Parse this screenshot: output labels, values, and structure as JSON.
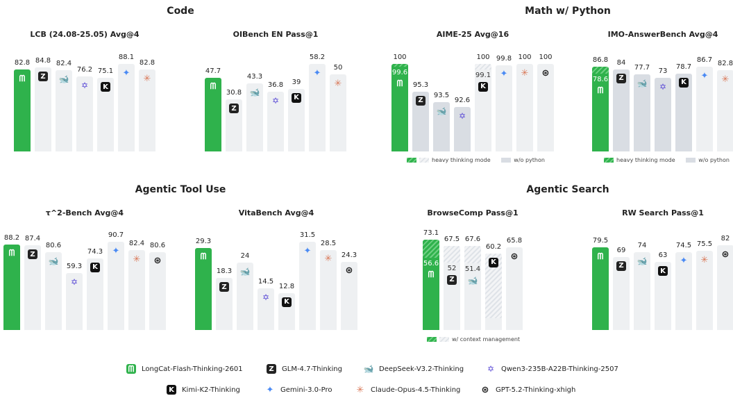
{
  "sections": {
    "code": "Code",
    "math": "Math w/ Python",
    "tool": "Agentic Tool Use",
    "search": "Agentic Search"
  },
  "models": [
    "LongCat-Flash-Thinking-2601",
    "GLM-4.7-Thinking",
    "DeepSeek-V3.2-Thinking",
    "Qwen3-235B-A22B-Thinking-2507",
    "Kimi-K2-Thinking",
    "Gemini-3.0-Pro",
    "Claude-Opus-4.5-Thinking",
    "GPT-5.2-Thinking-xhigh"
  ],
  "icons": [
    "longcat-icon",
    "glm-icon",
    "deepseek-icon",
    "qwen-icon",
    "kimi-icon",
    "gemini-icon",
    "claude-icon",
    "gpt-icon"
  ],
  "legends": {
    "heavy": "heavy thinking mode",
    "nopy": "w/o python",
    "ctx": "w/ context management"
  },
  "colors": {
    "longcat": "#2fb24c",
    "bar": "#eef0f2",
    "nopython": "#d9dde3"
  },
  "chart_data": [
    {
      "type": "bar",
      "title": "LCB (24.08-25.05) Avg@4",
      "ylim": [
        6.3,
        90.7
      ],
      "bars": [
        {
          "m": 0,
          "v": 82.8
        },
        {
          "m": 1,
          "v": 84.8
        },
        {
          "m": 2,
          "v": 82.4
        },
        {
          "m": 3,
          "v": 76.2
        },
        {
          "m": 4,
          "v": 75.1
        },
        {
          "m": 5,
          "v": 88.1
        },
        {
          "m": 6,
          "v": 82.8
        }
      ]
    },
    {
      "type": "bar",
      "title": "OIBench EN Pass@1",
      "ylim": [
        -9.5,
        60.4
      ],
      "bars": [
        {
          "m": 0,
          "v": 47.7
        },
        {
          "m": 1,
          "v": 30.8
        },
        {
          "m": 2,
          "v": 43.3
        },
        {
          "m": 3,
          "v": 36.8
        },
        {
          "m": 4,
          "v": 39
        },
        {
          "m": 5,
          "v": 58.2
        },
        {
          "m": 6,
          "v": 50
        }
      ]
    },
    {
      "type": "bar",
      "title": "AIME-25 Avg@16",
      "ylim": [
        85,
        100.5
      ],
      "bars": [
        {
          "m": 0,
          "v": 100,
          "base": 99.6
        },
        {
          "m": 1,
          "v": 95.3,
          "nopy": true
        },
        {
          "m": 2,
          "v": 93.5,
          "nopy": true
        },
        {
          "m": 3,
          "v": 92.6,
          "nopy": true
        },
        {
          "m": 4,
          "v": 100,
          "base": 99.1
        },
        {
          "m": 5,
          "v": 99.8
        },
        {
          "m": 6,
          "v": 100
        },
        {
          "m": 7,
          "v": 100
        }
      ]
    },
    {
      "type": "bar",
      "title": "IMO-AnswerBench Avg@4",
      "ylim": [
        -18,
        94
      ],
      "bars": [
        {
          "m": 0,
          "v": 86.8,
          "base": 78.6
        },
        {
          "m": 1,
          "v": 84,
          "nopy": true
        },
        {
          "m": 2,
          "v": 77.7,
          "nopy": true
        },
        {
          "m": 3,
          "v": 73,
          "nopy": true
        },
        {
          "m": 4,
          "v": 78.7,
          "nopy": true
        },
        {
          "m": 5,
          "v": 86.7
        },
        {
          "m": 6,
          "v": 82.8
        }
      ]
    },
    {
      "type": "bar",
      "title": "τ^2-Bench Avg@4",
      "ylim": [
        1.6,
        93.1
      ],
      "bars": [
        {
          "m": 0,
          "v": 88.2
        },
        {
          "m": 1,
          "v": 87.4
        },
        {
          "m": 2,
          "v": 80.6
        },
        {
          "m": 3,
          "v": 59.3
        },
        {
          "m": 4,
          "v": 74.3
        },
        {
          "m": 5,
          "v": 90.7
        },
        {
          "m": 6,
          "v": 82.4
        },
        {
          "m": 7,
          "v": 80.6
        }
      ]
    },
    {
      "type": "bar",
      "title": "VitaBench Avg@4",
      "ylim": [
        -0.7,
        32.3
      ],
      "bars": [
        {
          "m": 0,
          "v": 29.3
        },
        {
          "m": 1,
          "v": 18.3
        },
        {
          "m": 2,
          "v": 24
        },
        {
          "m": 3,
          "v": 14.5
        },
        {
          "m": 4,
          "v": 12.8
        },
        {
          "m": 5,
          "v": 31.5
        },
        {
          "m": 6,
          "v": 28.5
        },
        {
          "m": 7,
          "v": 24.3
        }
      ]
    },
    {
      "type": "bar",
      "title": "BrowseComp Pass@1",
      "ylim": [
        -10.8,
        73.1
      ],
      "bars": [
        {
          "m": 0,
          "v": 73.1,
          "base": 56.6
        },
        {
          "m": 1,
          "v": 67.5,
          "base": 52
        },
        {
          "m": 2,
          "v": 67.6,
          "base": 51.4
        },
        {
          "m": 4,
          "v": 60.2,
          "base": 0
        },
        {
          "m": 7,
          "v": 65.8
        }
      ]
    },
    {
      "type": "bar",
      "title": "RW Search Pass@1",
      "ylim": [
        -14,
        88.4
      ],
      "bars": [
        {
          "m": 0,
          "v": 79.5
        },
        {
          "m": 1,
          "v": 69
        },
        {
          "m": 2,
          "v": 74
        },
        {
          "m": 4,
          "v": 63
        },
        {
          "m": 5,
          "v": 74.5
        },
        {
          "m": 6,
          "v": 75.5
        },
        {
          "m": 7,
          "v": 82
        }
      ]
    }
  ]
}
